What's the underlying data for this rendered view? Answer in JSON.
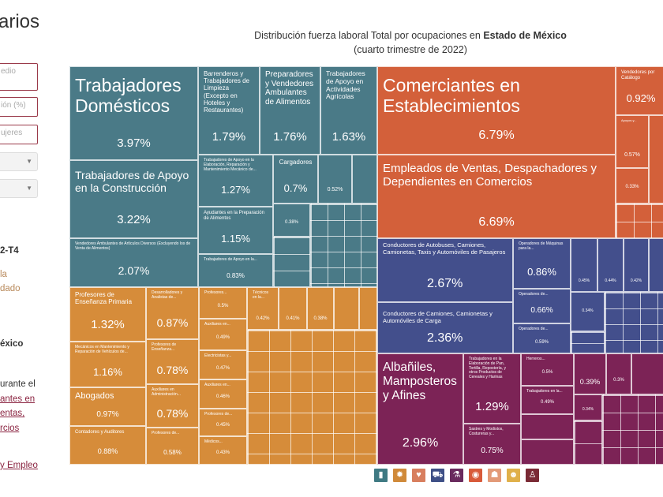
{
  "sidebar": {
    "title": "arios",
    "inputs": [
      "edio",
      "ión (%)",
      "ujeres"
    ],
    "selects": [
      "",
      ""
    ],
    "period": "2-T4",
    "note_lines": [
      "la",
      "dado"
    ],
    "state": "éxico",
    "text_lines": [
      "urante el",
      "antes en",
      "entas,",
      "rcios"
    ],
    "footer_link": "y Empleo"
  },
  "chart_data": {
    "type": "treemap",
    "title_prefix": "Distribución fuerza laboral Total por ocupaciones en ",
    "title_bold": "Estado de México",
    "subtitle": "(cuarto trimestre de 2022)",
    "unit": "%",
    "colors": {
      "teal": "#4a7a87",
      "orange": "#d68c3a",
      "red": "#d3603a",
      "navy": "#434f8c",
      "maroon": "#7c2356"
    },
    "groups": {
      "teal": [
        {
          "label": "Trabajadores Domésticos",
          "value": "3.97%"
        },
        {
          "label": "Trabajadores de Apoyo en la Construcción",
          "value": "3.22%"
        },
        {
          "label": "Vendedores Ambulantes de Artículos Diversos (Excluyendo los de Venta de Alimentos)",
          "value": "2.07%"
        },
        {
          "label": "Barrenderos y Trabajadores de Limpieza (Excepto en Hoteles y Restaurantes)",
          "value": "1.79%"
        },
        {
          "label": "Preparadores y Vendedores Ambulantes de Alimentos",
          "value": "1.76%"
        },
        {
          "label": "Trabajadores de Apoyo en Actividades Agrícolas",
          "value": "1.63%"
        },
        {
          "label": "Trabajadores de Apoyo en la Elaboración, Reparación y Mantenimiento Mecánico de...",
          "value": "1.27%"
        },
        {
          "label": "Cargadores",
          "value": "0.7%"
        },
        {
          "label": "",
          "value": "0.52%"
        },
        {
          "label": "Ayudantes en la Preparación de Alimentos",
          "value": "1.15%"
        },
        {
          "label": "Trabajadores de Apoyo en la...",
          "value": "0.83%"
        },
        {
          "label": "",
          "value": "0.38%"
        }
      ],
      "orange": [
        {
          "label": "Profesores de Enseñanza Primaria",
          "value": "1.32%"
        },
        {
          "label": "Mecánicos en Mantenimiento y Reparación de Vehículos de...",
          "value": "1.16%"
        },
        {
          "label": "Abogados",
          "value": "0.97%"
        },
        {
          "label": "Contadores y Auditores",
          "value": "0.88%"
        },
        {
          "label": "Desarrolladores y Analistas de...",
          "value": "0.87%"
        },
        {
          "label": "Profesores de Enseñanza...",
          "value": "0.78%"
        },
        {
          "label": "Auxiliares en Administración...",
          "value": "0.78%"
        },
        {
          "label": "Profesores de...",
          "value": "0.58%"
        },
        {
          "label": "Profesores...",
          "value": "0.5%"
        },
        {
          "label": "Auxiliares en...",
          "value": "0.49%"
        },
        {
          "label": "Electricistas y...",
          "value": "0.47%"
        },
        {
          "label": "Auxiliares en...",
          "value": "0.46%"
        },
        {
          "label": "Profesores de...",
          "value": "0.45%"
        },
        {
          "label": "Médicos...",
          "value": "0.43%"
        },
        {
          "label": "Técnicos en la...",
          "value": "0.42%"
        },
        {
          "label": "",
          "value": "0.41%"
        },
        {
          "label": "",
          "value": "0.38%"
        }
      ],
      "red": [
        {
          "label": "Comerciantes en Establecimientos",
          "value": "6.79%"
        },
        {
          "label": "Empleados de Ventas, Despachadores y Dependientes en Comercios",
          "value": "6.69%"
        },
        {
          "label": "Vendedores por Catálogo",
          "value": "0.92%"
        },
        {
          "label": "Apoyos y...",
          "value": "0.57%"
        },
        {
          "label": "",
          "value": "0.33%"
        }
      ],
      "navy": [
        {
          "label": "Conductores de Autobuses, Camiones, Camionetas, Taxis y Automóviles de Pasajeros",
          "value": "2.67%"
        },
        {
          "label": "Conductores de Camiones, Camionetas y Automóviles de Carga",
          "value": "2.36%"
        },
        {
          "label": "Operadores de Máquinas para la...",
          "value": "0.86%"
        },
        {
          "label": "Operadores de...",
          "value": "0.66%"
        },
        {
          "label": "Operadores de...",
          "value": "0.59%"
        },
        {
          "label": "",
          "value": "0.45%"
        },
        {
          "label": "",
          "value": "0.44%"
        },
        {
          "label": "",
          "value": "0.42%"
        },
        {
          "label": "",
          "value": "0.34%"
        }
      ],
      "maroon": [
        {
          "label": "Albañiles, Mamposteros y Afines",
          "value": "2.96%"
        },
        {
          "label": "Trabajadores en la Elaboración de Pan, Tortilla, Repostería, y otros Productos de Cereales y Harinas",
          "value": "1.29%"
        },
        {
          "label": "Sastres y Modistos, Costureras y...",
          "value": "0.75%"
        },
        {
          "label": "Herreros...",
          "value": "0.5%"
        },
        {
          "label": "Trabajadores en la...",
          "value": "0.49%"
        },
        {
          "label": "",
          "value": "0.39%"
        },
        {
          "label": "",
          "value": "0.3%"
        },
        {
          "label": "",
          "value": "0.34%"
        }
      ]
    },
    "legend_icons": [
      {
        "icon": "bottle-icon",
        "color": "#3f7a83"
      },
      {
        "icon": "gear-icon",
        "color": "#d08a3a"
      },
      {
        "icon": "hands-icon",
        "color": "#d87e5e"
      },
      {
        "icon": "tractor-icon",
        "color": "#3e4f86"
      },
      {
        "icon": "flask-icon",
        "color": "#6a2a5e"
      },
      {
        "icon": "eye-icon",
        "color": "#d85a3a"
      },
      {
        "icon": "people-icon",
        "color": "#e39a78"
      },
      {
        "icon": "worker-icon",
        "color": "#e0b04a"
      },
      {
        "icon": "person-icon",
        "color": "#7a2a35"
      }
    ]
  }
}
